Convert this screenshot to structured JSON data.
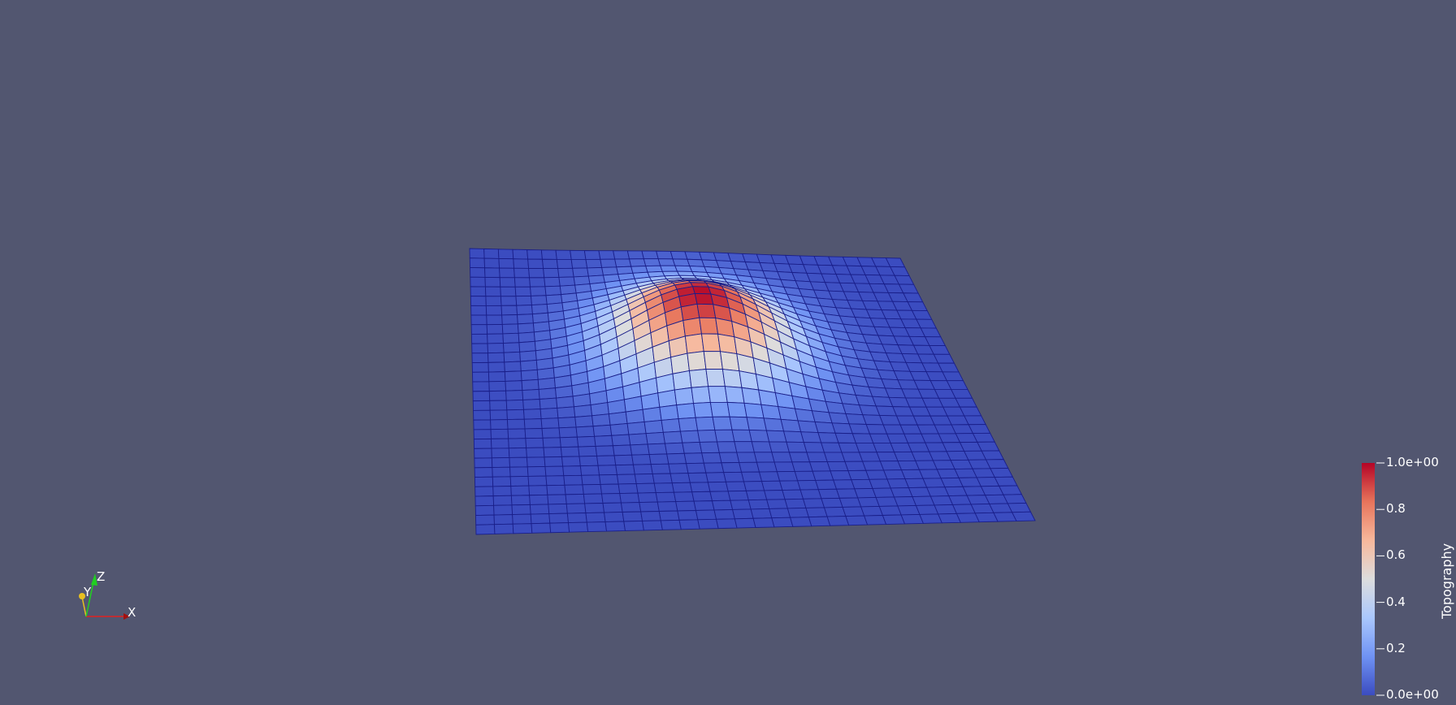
{
  "scene": {
    "background_color": "#525670",
    "surface": {
      "array_name": "Topography",
      "grid_resolution": [
        30,
        30
      ],
      "value_range": [
        0.0,
        1.0
      ],
      "peak_value": 1.0,
      "edge_color": "#1a1f8a"
    }
  },
  "colorbar": {
    "title": "Topography",
    "ticks": [
      {
        "value": 1.0,
        "label": "1.0e+00"
      },
      {
        "value": 0.8,
        "label": "0.8"
      },
      {
        "value": 0.6,
        "label": "0.6"
      },
      {
        "value": 0.4,
        "label": "0.4"
      },
      {
        "value": 0.2,
        "label": "0.2"
      },
      {
        "value": 0.0,
        "label": "0.0e+00"
      }
    ],
    "colormap": [
      "#3b4cc0",
      "#6f92f3",
      "#aac7fd",
      "#dddddd",
      "#f7b89c",
      "#e7745b",
      "#b40426"
    ]
  },
  "orientation_axes": {
    "x_label": "X",
    "y_label": "Y",
    "z_label": "Z",
    "x_color": "#e02020",
    "y_color": "#e8c020",
    "z_color": "#20d020"
  }
}
